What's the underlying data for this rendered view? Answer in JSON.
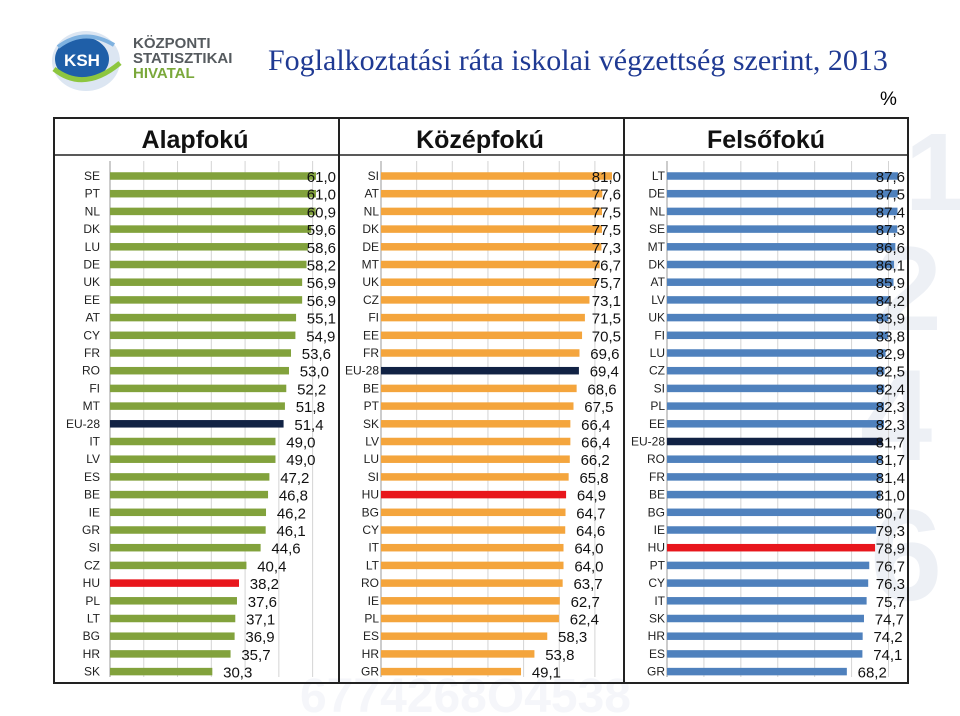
{
  "header": {
    "logo_letters": "KSH",
    "logo_line1": "KÖZPONTI",
    "logo_line2": "STATISZTIKAI",
    "logo_line3": "HIVATAL",
    "title": "Foglalkoztatási ráta iskolai végzettség szerint, 2013",
    "unit": "%"
  },
  "colors": {
    "primary": "#82a23c",
    "secondary": "#f4a53d",
    "tertiary": "#4f81bd",
    "eu28": "#112244",
    "hungary": "#e8161c",
    "title": "#1f3a93"
  },
  "chart_data": [
    {
      "type": "bar",
      "orientation": "horizontal",
      "title": "Alapfokú",
      "categories": [
        "SE",
        "PT",
        "NL",
        "DK",
        "LU",
        "DE",
        "UK",
        "EE",
        "AT",
        "CY",
        "FR",
        "RO",
        "FI",
        "MT",
        "EU-28",
        "IT",
        "LV",
        "ES",
        "BE",
        "IE",
        "GR",
        "SI",
        "CZ",
        "HU",
        "PL",
        "LT",
        "BG",
        "HR",
        "SK"
      ],
      "values": [
        61.0,
        61.0,
        60.9,
        59.6,
        58.6,
        58.2,
        56.9,
        56.9,
        55.1,
        54.9,
        53.6,
        53.0,
        52.2,
        51.8,
        51.4,
        49.0,
        49.0,
        47.2,
        46.8,
        46.2,
        46.1,
        44.6,
        40.4,
        38.2,
        37.6,
        37.1,
        36.9,
        35.7,
        30.3
      ],
      "labels": [
        "61,0",
        "61,0",
        "60,9",
        "59,6",
        "58,6",
        "58,2",
        "56,9",
        "56,9",
        "55,1",
        "54,9",
        "53,6",
        "53,0",
        "52,2",
        "51,8",
        "51,4",
        "49,0",
        "49,0",
        "47,2",
        "46,8",
        "46,2",
        "46,1",
        "44,6",
        "40,4",
        "38,2",
        "37,6",
        "37,1",
        "36,9",
        "35,7",
        "30,3"
      ],
      "xlim": [
        0,
        66
      ],
      "grid": true
    },
    {
      "type": "bar",
      "orientation": "horizontal",
      "title": "Középfokú",
      "categories": [
        "SI",
        "AT",
        "NL",
        "DK",
        "DE",
        "MT",
        "UK",
        "CZ",
        "FI",
        "EE",
        "FR",
        "EU-28",
        "BE",
        "PT",
        "SK",
        "LV",
        "LU",
        "SI",
        "HU",
        "BG",
        "CY",
        "IT",
        "LT",
        "RO",
        "IE",
        "PL",
        "ES",
        "HR",
        "GR"
      ],
      "values": [
        81.0,
        77.6,
        77.5,
        77.5,
        77.3,
        76.7,
        75.7,
        73.1,
        71.5,
        70.5,
        69.6,
        69.4,
        68.6,
        67.5,
        66.4,
        66.4,
        66.2,
        65.8,
        64.9,
        64.7,
        64.6,
        64.0,
        64.0,
        63.7,
        62.7,
        62.4,
        58.3,
        53.8,
        49.1
      ],
      "labels": [
        "81,0",
        "77,6",
        "77,5",
        "77,5",
        "77,3",
        "76,7",
        "75,7",
        "73,1",
        "71,5",
        "70,5",
        "69,6",
        "69,4",
        "68,6",
        "67,5",
        "66,4",
        "66,4",
        "66,2",
        "65,8",
        "64,9",
        "64,7",
        "64,6",
        "64,0",
        "64,0",
        "63,7",
        "62,7",
        "62,4",
        "58,3",
        "53,8",
        "49,1"
      ],
      "xlim": [
        0,
        88
      ],
      "grid": true
    },
    {
      "type": "bar",
      "orientation": "horizontal",
      "title": "Felsőfokú",
      "categories": [
        "LT",
        "DE",
        "NL",
        "SE",
        "MT",
        "DK",
        "AT",
        "LV",
        "UK",
        "FI",
        "LU",
        "CZ",
        "SI",
        "PL",
        "EE",
        "EU-28",
        "RO",
        "FR",
        "BE",
        "BG",
        "IE",
        "HU",
        "PT",
        "CY",
        "IT",
        "SK",
        "HR",
        "ES",
        "GR"
      ],
      "values": [
        87.6,
        87.5,
        87.4,
        87.3,
        86.6,
        86.1,
        85.9,
        84.2,
        83.9,
        83.8,
        82.9,
        82.5,
        82.4,
        82.3,
        82.3,
        81.7,
        81.7,
        81.4,
        81.0,
        80.7,
        79.3,
        78.9,
        76.7,
        76.3,
        75.7,
        74.7,
        74.2,
        74.1,
        68.2
      ],
      "labels": [
        "87,6",
        "87,5",
        "87,4",
        "87,3",
        "86,6",
        "86,1",
        "85,9",
        "84,2",
        "83,9",
        "83,8",
        "82,9",
        "82,5",
        "82,4",
        "82,3",
        "82,3",
        "81,7",
        "81,7",
        "81,4",
        "81,0",
        "80,7",
        "79,3",
        "78,9",
        "76,7",
        "76,3",
        "75,7",
        "74,7",
        "74,2",
        "74,1",
        "68,2"
      ],
      "xlim": [
        0,
        95
      ],
      "grid": true
    }
  ]
}
